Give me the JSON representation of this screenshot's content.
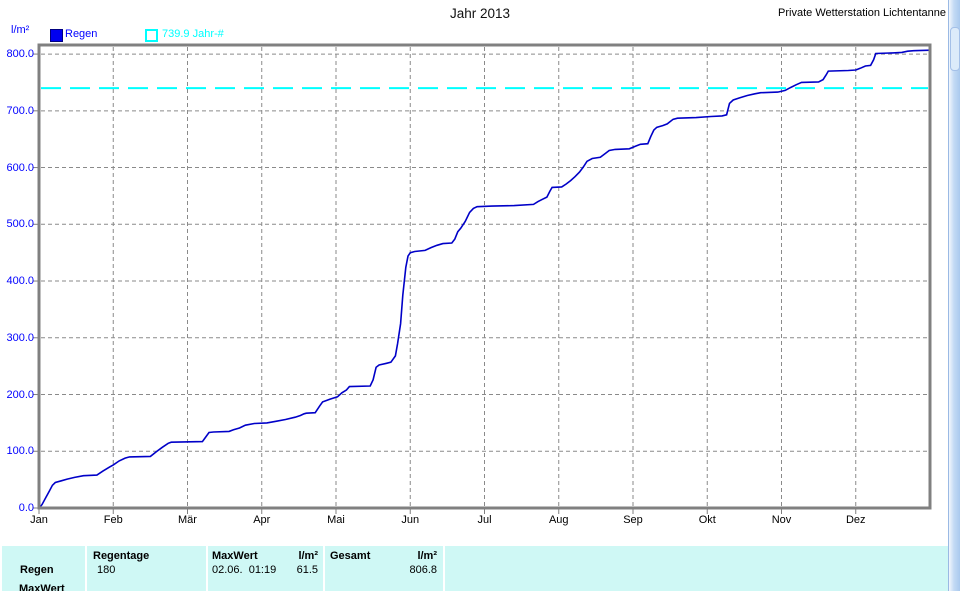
{
  "header": {
    "title": "Jahr 2013",
    "station": "Private Wetterstation Lichtentanne"
  },
  "legend": {
    "unit": "l/m²",
    "rain_label": "Regen",
    "threshold_label": "739.9 Jahr-#"
  },
  "colors": {
    "series_line": "#0000c8",
    "legend_blue": "#0000ff",
    "threshold_cyan": "#00ffff",
    "grid": "#8a8a8a",
    "frame": "#808080",
    "tick": "#808080",
    "table_bg": "#cff8f5",
    "scrollbar_track": "#b5d2f0"
  },
  "chart_data": {
    "type": "line",
    "title": "Jahr 2013",
    "series_name": "Regen",
    "y_unit": "l/m²",
    "x_unit": "month (0 = Jan 1, 12 = Dec 31)",
    "x_ticks": [
      "Jan",
      "Feb",
      "Mär",
      "Apr",
      "Mai",
      "Jun",
      "Jul",
      "Aug",
      "Sep",
      "Okt",
      "Nov",
      "Dez"
    ],
    "y_ticks": [
      0,
      100,
      200,
      300,
      400,
      500,
      600,
      700,
      800
    ],
    "ylim": [
      0,
      816
    ],
    "grid": true,
    "legend_position": "top-left",
    "threshold": {
      "value": 739.9,
      "label": "739.9 Jahr-#"
    },
    "final_total": 806.8,
    "points": [
      [
        0,
        0
      ],
      [
        0.04,
        6
      ],
      [
        0.09,
        18
      ],
      [
        0.14,
        30
      ],
      [
        0.18,
        40
      ],
      [
        0.22,
        45
      ],
      [
        0.3,
        48
      ],
      [
        0.38,
        51
      ],
      [
        0.48,
        54
      ],
      [
        0.6,
        57
      ],
      [
        0.78,
        58
      ],
      [
        0.86,
        65
      ],
      [
        0.95,
        72
      ],
      [
        1,
        76
      ],
      [
        1.08,
        83
      ],
      [
        1.16,
        88
      ],
      [
        1.22,
        90
      ],
      [
        1.5,
        91
      ],
      [
        1.58,
        99
      ],
      [
        1.66,
        107
      ],
      [
        1.74,
        114
      ],
      [
        1.78,
        116
      ],
      [
        2.2,
        117
      ],
      [
        2.24,
        124
      ],
      [
        2.29,
        133
      ],
      [
        2.35,
        134
      ],
      [
        2.56,
        135
      ],
      [
        2.62,
        138
      ],
      [
        2.7,
        141
      ],
      [
        2.78,
        146
      ],
      [
        2.9,
        149
      ],
      [
        3.07,
        150
      ],
      [
        3.2,
        153
      ],
      [
        3.32,
        156
      ],
      [
        3.45,
        160
      ],
      [
        3.52,
        163
      ],
      [
        3.57,
        166
      ],
      [
        3.6,
        167
      ],
      [
        3.72,
        168
      ],
      [
        3.78,
        180
      ],
      [
        3.82,
        187
      ],
      [
        3.88,
        190
      ],
      [
        3.92,
        192
      ],
      [
        4.02,
        196
      ],
      [
        4.08,
        203
      ],
      [
        4.14,
        208
      ],
      [
        4.18,
        214
      ],
      [
        4.46,
        215
      ],
      [
        4.5,
        226
      ],
      [
        4.54,
        248
      ],
      [
        4.58,
        252
      ],
      [
        4.68,
        255
      ],
      [
        4.74,
        257
      ],
      [
        4.8,
        268
      ],
      [
        4.83,
        290
      ],
      [
        4.87,
        325
      ],
      [
        4.9,
        375
      ],
      [
        4.94,
        424
      ],
      [
        4.97,
        444
      ],
      [
        5,
        450
      ],
      [
        5.06,
        452
      ],
      [
        5.2,
        454
      ],
      [
        5.28,
        459
      ],
      [
        5.36,
        463
      ],
      [
        5.44,
        466
      ],
      [
        5.56,
        467
      ],
      [
        5.6,
        474
      ],
      [
        5.64,
        487
      ],
      [
        5.68,
        493
      ],
      [
        5.74,
        505
      ],
      [
        5.8,
        521
      ],
      [
        5.85,
        528
      ],
      [
        5.9,
        531
      ],
      [
        6.1,
        532
      ],
      [
        6.4,
        533
      ],
      [
        6.66,
        535
      ],
      [
        6.72,
        540
      ],
      [
        6.78,
        544
      ],
      [
        6.84,
        548
      ],
      [
        6.88,
        558
      ],
      [
        6.91,
        565
      ],
      [
        7.04,
        566
      ],
      [
        7.1,
        571
      ],
      [
        7.16,
        577
      ],
      [
        7.22,
        584
      ],
      [
        7.28,
        592
      ],
      [
        7.33,
        601
      ],
      [
        7.38,
        611
      ],
      [
        7.45,
        616
      ],
      [
        7.56,
        618
      ],
      [
        7.62,
        624
      ],
      [
        7.68,
        630
      ],
      [
        7.76,
        632
      ],
      [
        7.95,
        633
      ],
      [
        8.04,
        638
      ],
      [
        8.1,
        641
      ],
      [
        8.2,
        642
      ],
      [
        8.24,
        655
      ],
      [
        8.28,
        666
      ],
      [
        8.32,
        671
      ],
      [
        8.4,
        674
      ],
      [
        8.46,
        677
      ],
      [
        8.5,
        681
      ],
      [
        8.54,
        685
      ],
      [
        8.6,
        687
      ],
      [
        8.85,
        688
      ],
      [
        9.05,
        690
      ],
      [
        9.2,
        691
      ],
      [
        9.26,
        693
      ],
      [
        9.3,
        713
      ],
      [
        9.35,
        719
      ],
      [
        9.44,
        723
      ],
      [
        9.54,
        727
      ],
      [
        9.64,
        730
      ],
      [
        9.72,
        732
      ],
      [
        9.95,
        733
      ],
      [
        10.05,
        736
      ],
      [
        10.12,
        741
      ],
      [
        10.2,
        746
      ],
      [
        10.27,
        750
      ],
      [
        10.5,
        751
      ],
      [
        10.56,
        755
      ],
      [
        10.6,
        763
      ],
      [
        10.63,
        770
      ],
      [
        10.9,
        771
      ],
      [
        11,
        772
      ],
      [
        11.06,
        775
      ],
      [
        11.13,
        779
      ],
      [
        11.2,
        780
      ],
      [
        11.24,
        790
      ],
      [
        11.27,
        801
      ],
      [
        11.5,
        802
      ],
      [
        11.62,
        803
      ],
      [
        11.7,
        805
      ],
      [
        11.78,
        806
      ],
      [
        12,
        806.8
      ]
    ]
  },
  "table": {
    "row_label_1": "Regen",
    "row_label_2": "MaxWert",
    "col_regentage_header": "Regentage",
    "col_regentage_value": "180",
    "col_maxwert_header": "MaxWert",
    "col_maxwert_unit": "l/m²",
    "col_maxwert_value": "02.06.  01:19",
    "col_maxwert_amount": "61.5",
    "col_gesamt_header": "Gesamt",
    "col_gesamt_unit": "l/m²",
    "col_gesamt_value": "806.8"
  }
}
